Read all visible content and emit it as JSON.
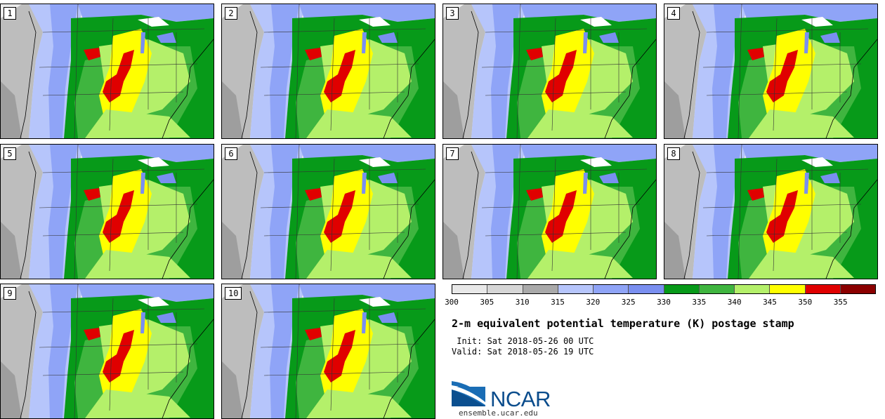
{
  "panels": [
    {
      "label": "1"
    },
    {
      "label": "2"
    },
    {
      "label": "3"
    },
    {
      "label": "4"
    },
    {
      "label": "5"
    },
    {
      "label": "6"
    },
    {
      "label": "7"
    },
    {
      "label": "8"
    },
    {
      "label": "9"
    },
    {
      "label": "10"
    }
  ],
  "colorbar": {
    "ticks": [
      "300",
      "305",
      "310",
      "315",
      "320",
      "325",
      "330",
      "335",
      "340",
      "345",
      "350",
      "355"
    ],
    "colors": [
      "#e8e8e8",
      "#d6d6d6",
      "#a9a9a9",
      "#b6c5fb",
      "#8fa4f7",
      "#7a8ff0",
      "#079a19",
      "#3fb53f",
      "#b4f06a",
      "#ffff00",
      "#e00000",
      "#8b0000"
    ]
  },
  "title": "2-m equivalent potential temperature (K) postage stamp",
  "init_text": " Init: Sat 2018-05-26 00 UTC",
  "valid_text": "Valid: Sat 2018-05-26 19 UTC",
  "logo_text": "NCAR",
  "url": "ensemble.ucar.edu"
}
